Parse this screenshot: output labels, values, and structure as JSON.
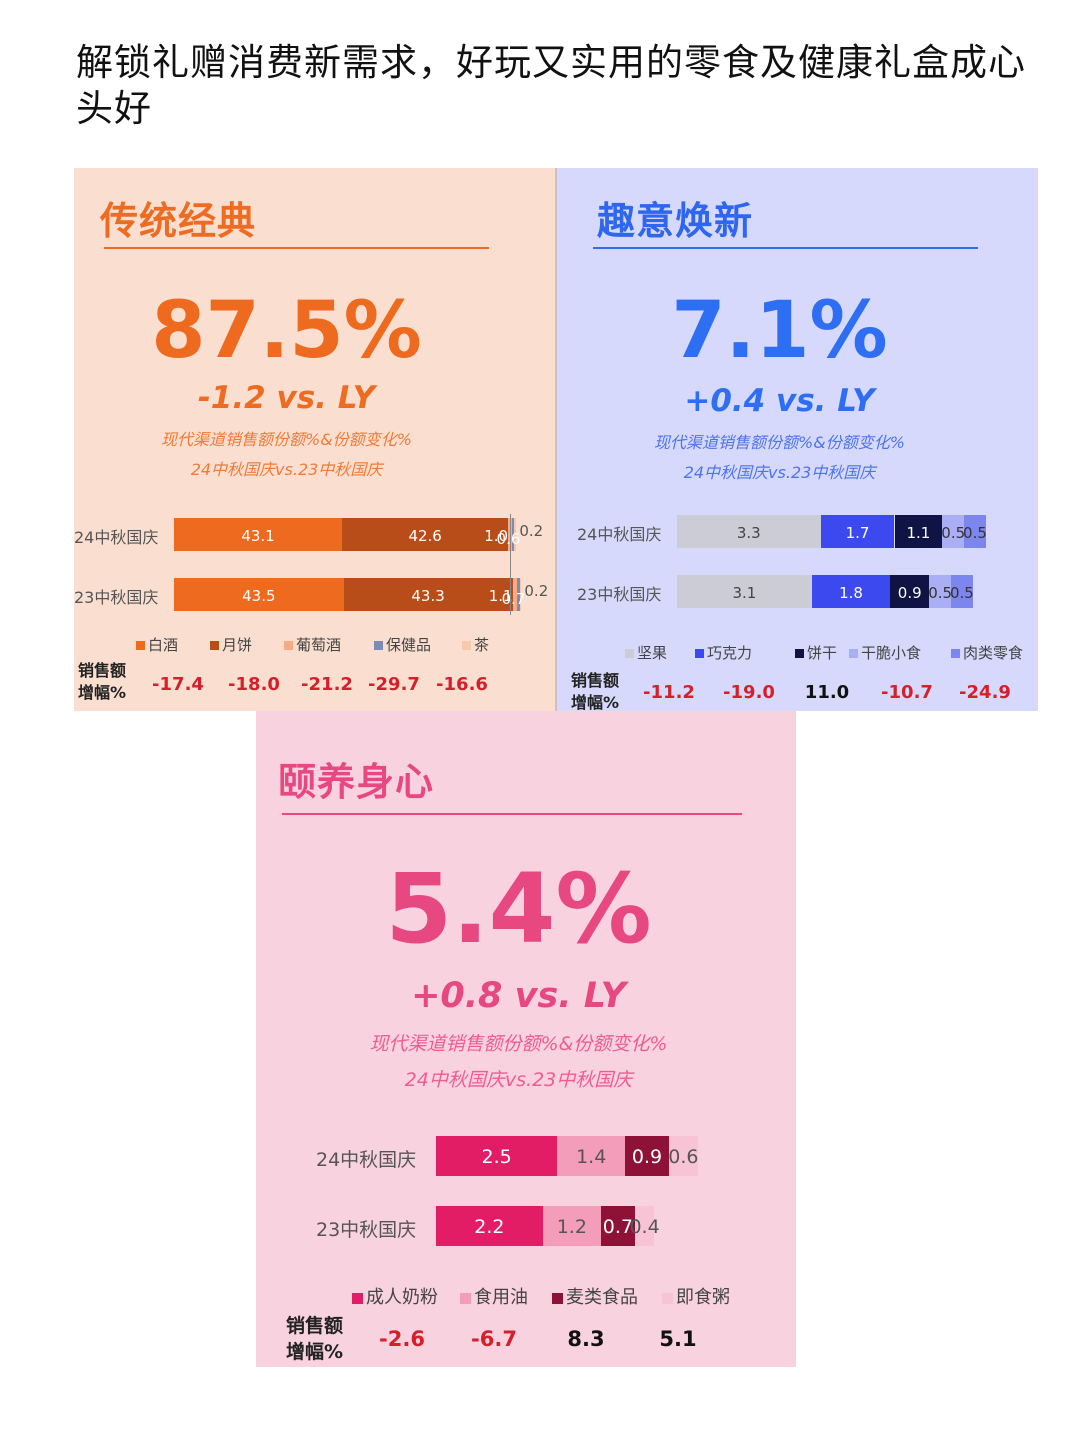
{
  "headline": "解锁礼赠消费新需求，好玩又实用的零食及健康礼盒成心头好",
  "chart_data": [
    {
      "type": "bar",
      "title": "传统经典",
      "share": "87.5%",
      "change": "-1.2 vs. LY",
      "subtitle1": "现代渠道销售额份额%&份额变化%",
      "subtitle2": "24中秋国庆vs.23中秋国庆",
      "categories": [
        "24中秋国庆",
        "23中秋国庆"
      ],
      "series": [
        {
          "name": "白酒",
          "values": [
            43.1,
            43.5
          ],
          "color": "#ed6a1f",
          "label_color": "#ffffff"
        },
        {
          "name": "月饼",
          "values": [
            42.6,
            43.3
          ],
          "color": "#b94d1a",
          "label_color": "#ffffff"
        },
        {
          "name": "葡萄酒",
          "values": [
            1.0,
            1.1
          ],
          "color": "#f6ab84",
          "label_color": "#ffffff"
        },
        {
          "name": "保健品",
          "values": [
            0.6,
            0.7
          ],
          "color": "#7f8ab4",
          "label_color": "#ffffff"
        },
        {
          "name": "茶",
          "values": [
            0.2,
            0.2
          ],
          "color": "#f8c8ad",
          "label_color": "#333333"
        }
      ],
      "seg_labels": [
        [
          "43.1",
          "42.6",
          "1.0",
          "0.6",
          "0.2"
        ],
        [
          "43.5",
          "43.3",
          "1.1",
          "0.7",
          "0.2"
        ]
      ],
      "growth_label": "销售额增幅%",
      "growth": [
        "-17.4",
        "-18.0",
        "-21.2",
        "-29.7",
        "-16.6"
      ],
      "growth_colors": [
        "#d4202b",
        "#d4202b",
        "#d4202b",
        "#d4202b",
        "#d4202b"
      ]
    },
    {
      "type": "bar",
      "title": "趣意焕新",
      "share": "7.1%",
      "change": "+0.4 vs. LY",
      "subtitle1": "现代渠道销售额份额%&份额变化%",
      "subtitle2": "24中秋国庆vs.23中秋国庆",
      "categories": [
        "24中秋国庆",
        "23中秋国庆"
      ],
      "series": [
        {
          "name": "坚果",
          "values": [
            3.3,
            3.1
          ],
          "color": "#ccccd6",
          "label_color": "#444444"
        },
        {
          "name": "巧克力",
          "values": [
            1.7,
            1.8
          ],
          "color": "#3c49ee",
          "label_color": "#ffffff"
        },
        {
          "name": "饼干",
          "values": [
            1.1,
            0.9
          ],
          "color": "#0f1445",
          "label_color": "#ffffff"
        },
        {
          "name": "干脆小食",
          "values": [
            0.5,
            0.5
          ],
          "color": "#a9aef5",
          "label_color": "#333333"
        },
        {
          "name": "肉类零食",
          "values": [
            0.5,
            0.5
          ],
          "color": "#7d85ef",
          "label_color": "#333333"
        }
      ],
      "seg_labels": [
        [
          "3.3",
          "1.7",
          "1.1",
          "0.5",
          "0.5"
        ],
        [
          "3.1",
          "1.8",
          "0.9",
          "0.5",
          "0.5"
        ]
      ],
      "growth_label": "销售额增幅%",
      "growth": [
        "-11.2",
        "-19.0",
        "11.0",
        "-10.7",
        "-24.9"
      ],
      "growth_colors": [
        "#d4202b",
        "#d4202b",
        "#111111",
        "#d4202b",
        "#d4202b"
      ]
    },
    {
      "type": "bar",
      "title": "颐养身心",
      "share": "5.4%",
      "change": "+0.8 vs. LY",
      "subtitle1": "现代渠道销售额份额%&份额变化%",
      "subtitle2": "24中秋国庆vs.23中秋国庆",
      "categories": [
        "24中秋国庆",
        "23中秋国庆"
      ],
      "series": [
        {
          "name": "成人奶粉",
          "values": [
            2.5,
            2.2
          ],
          "color": "#e21d66",
          "label_color": "#ffffff"
        },
        {
          "name": "食用油",
          "values": [
            1.4,
            1.2
          ],
          "color": "#f39dbb",
          "label_color": "#555555"
        },
        {
          "name": "麦类食品",
          "values": [
            0.9,
            0.7
          ],
          "color": "#8e1238",
          "label_color": "#ffffff"
        },
        {
          "name": "即食粥",
          "values": [
            0.6,
            0.4
          ],
          "color": "#f8c3d5",
          "label_color": "#555555"
        }
      ],
      "seg_labels": [
        [
          "2.5",
          "1.4",
          "0.9",
          "0.6"
        ],
        [
          "2.2",
          "1.2",
          "0.7",
          "0.4"
        ]
      ],
      "growth_label": "销售额增幅%",
      "growth": [
        "-2.6",
        "-6.7",
        "8.3",
        "5.1"
      ],
      "growth_colors": [
        "#d4202b",
        "#d4202b",
        "#111111",
        "#111111"
      ]
    }
  ],
  "theme": {
    "trad_accent": "#ed6a1f",
    "fun_accent": "#2d6ef2",
    "health_accent": "#e6487f"
  }
}
